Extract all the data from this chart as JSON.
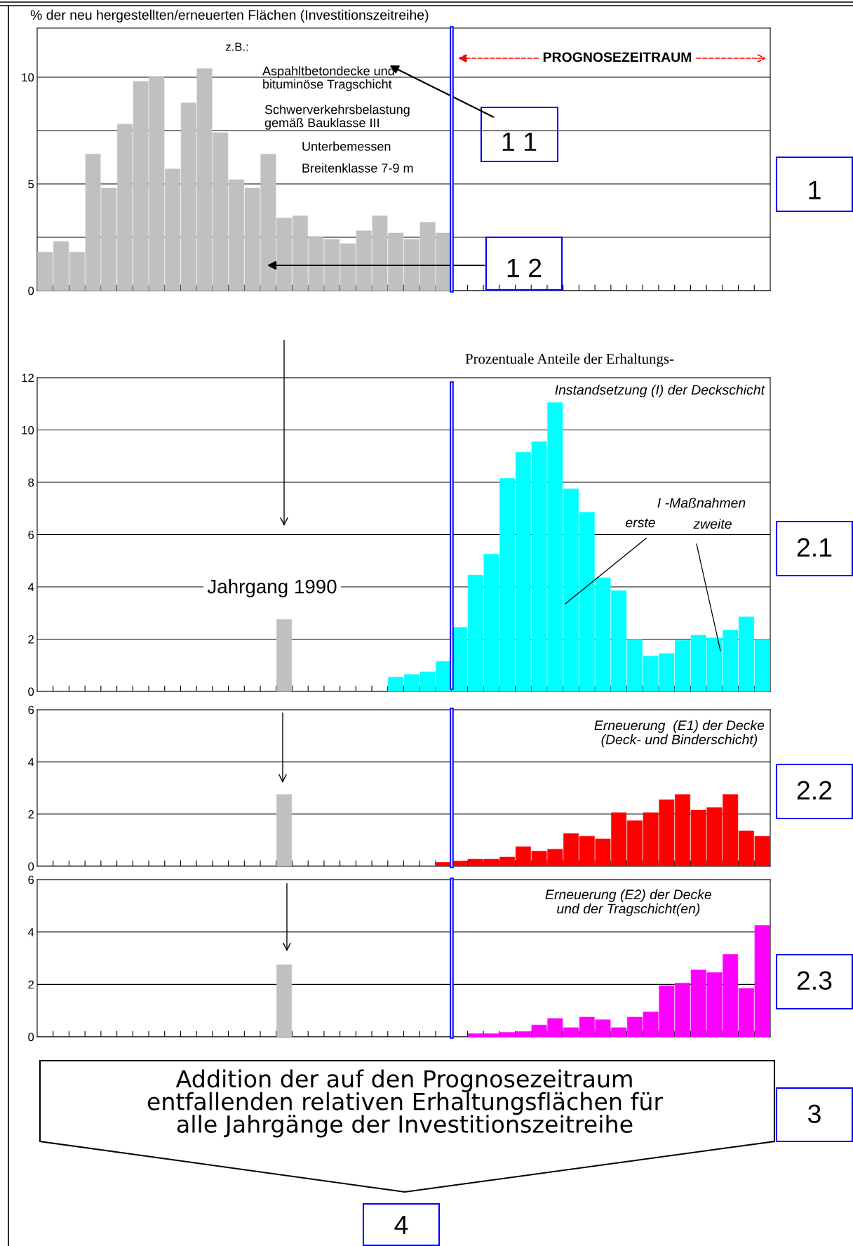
{
  "chart_data": [
    {
      "type": "bar",
      "ylabel": "% der neu hergestellten/erneuerten Flächen (Investitionszeitreihe)",
      "categories": [
        null,
        null,
        null,
        null,
        null,
        null,
        null,
        null,
        null,
        null,
        null,
        null,
        null,
        null,
        null,
        null,
        null,
        null,
        null,
        null,
        null,
        null,
        null,
        null,
        null,
        null,
        null,
        null,
        null,
        null,
        null,
        null,
        null,
        null,
        null,
        null,
        null,
        null,
        null,
        null,
        null,
        null,
        null,
        null,
        null,
        null
      ],
      "series": [
        {
          "color": "#c0c0c0",
          "values": [
            1.8,
            2.3,
            1.8,
            6.4,
            4.8,
            7.8,
            9.8,
            10.0,
            5.7,
            8.8,
            10.4,
            7.4,
            5.2,
            4.8,
            6.4,
            3.4,
            3.5,
            2.5,
            2.4,
            2.2,
            2.8,
            3.5,
            2.7,
            2.4,
            3.2,
            2.7,
            null,
            null,
            null,
            null,
            null,
            null,
            null,
            null,
            null,
            null,
            null,
            null,
            null,
            null,
            null,
            null,
            null,
            null,
            null,
            null
          ]
        }
      ],
      "ylim": [
        0,
        12.3
      ],
      "yticks": [
        0,
        {
          "value": 2.5,
          "label": null
        },
        5,
        {
          "value": 7.5,
          "label": null
        },
        10
      ],
      "grid": "y",
      "tick_labels": "y",
      "annotations": [
        "z.B.:",
        "Aspahltbetondecke und\nbituminöse Tragschicht",
        "Schwerverkehrsbelastung\ngemäß Bauklasse III",
        "Unterbemessen",
        "Breitenklasse 7-9 m",
        "PROGNOSEZEITRAUM",
        "1 1",
        "1 2",
        "1"
      ]
    },
    {
      "type": "bar",
      "categories": [
        null,
        null,
        null,
        null,
        null,
        null,
        null,
        null,
        null,
        null,
        null,
        null,
        null,
        null,
        null,
        null,
        null,
        null,
        null,
        null,
        null,
        null,
        null,
        null,
        null,
        null,
        null,
        null,
        null,
        null,
        null,
        null,
        null,
        null,
        null,
        null,
        null,
        null,
        null,
        null,
        null,
        null,
        null,
        null,
        null,
        null
      ],
      "series": [
        {
          "color": "#c0c0c0",
          "values": [
            null,
            null,
            null,
            null,
            null,
            null,
            null,
            null,
            null,
            null,
            null,
            null,
            null,
            null,
            null,
            2.75,
            null,
            null,
            null,
            null,
            null,
            null,
            null,
            null,
            null,
            null,
            null,
            null,
            null,
            null,
            null,
            null,
            null,
            null,
            null,
            null,
            null,
            null,
            null,
            null,
            null,
            null,
            null,
            null,
            null,
            null
          ]
        },
        {
          "color": "#00ffff",
          "values": [
            null,
            null,
            null,
            null,
            null,
            null,
            null,
            null,
            null,
            null,
            null,
            null,
            null,
            null,
            null,
            null,
            null,
            null,
            null,
            null,
            null,
            null,
            0.55,
            0.65,
            0.75,
            1.15,
            2.45,
            4.45,
            5.25,
            8.15,
            9.15,
            9.55,
            11.05,
            7.75,
            6.85,
            4.35,
            3.85,
            2.0,
            1.35,
            1.45,
            1.95,
            2.15,
            2.05,
            2.35,
            2.85,
            2.0
          ]
        }
      ],
      "ylim": [
        0,
        12
      ],
      "yticks": [
        0,
        2,
        4,
        6,
        8,
        10,
        12
      ],
      "grid": "y",
      "tick_labels": "y",
      "annotations": [
        "Prozentuale Anteile der Erhaltungs-",
        "Instandsetzung (I) der Deckschicht",
        "I -Maßnahmen",
        "erste",
        "zweite",
        "Jahrgang 1990",
        "2.1"
      ]
    },
    {
      "type": "bar",
      "categories": [
        null,
        null,
        null,
        null,
        null,
        null,
        null,
        null,
        null,
        null,
        null,
        null,
        null,
        null,
        null,
        null,
        null,
        null,
        null,
        null,
        null,
        null,
        null,
        null,
        null,
        null,
        null,
        null,
        null,
        null,
        null,
        null,
        null,
        null,
        null,
        null,
        null,
        null,
        null,
        null,
        null,
        null,
        null,
        null,
        null,
        null
      ],
      "series": [
        {
          "color": "#c0c0c0",
          "values": [
            null,
            null,
            null,
            null,
            null,
            null,
            null,
            null,
            null,
            null,
            null,
            null,
            null,
            null,
            null,
            2.75,
            null,
            null,
            null,
            null,
            null,
            null,
            null,
            null,
            null,
            null,
            null,
            null,
            null,
            null,
            null,
            null,
            null,
            null,
            null,
            null,
            null,
            null,
            null,
            null,
            null,
            null,
            null,
            null,
            null,
            null
          ]
        },
        {
          "color": "#ff0000",
          "values": [
            null,
            null,
            null,
            null,
            null,
            null,
            null,
            null,
            null,
            null,
            null,
            null,
            null,
            null,
            null,
            null,
            null,
            null,
            null,
            null,
            null,
            null,
            null,
            null,
            null,
            0.15,
            0.2,
            0.27,
            0.27,
            0.35,
            0.75,
            0.58,
            0.65,
            1.25,
            1.15,
            1.05,
            2.05,
            1.75,
            2.05,
            2.55,
            2.75,
            2.15,
            2.25,
            2.75,
            1.35,
            1.15
          ]
        }
      ],
      "ylim": [
        0,
        6
      ],
      "yticks": [
        0,
        2,
        4,
        6
      ],
      "grid": "y",
      "tick_labels": "y",
      "annotations": [
        "Erneuerung  (E1) der Decke\n(Deck- und Binderschicht)",
        "2.2"
      ]
    },
    {
      "type": "bar",
      "categories": [
        null,
        null,
        null,
        null,
        null,
        null,
        null,
        null,
        null,
        null,
        null,
        null,
        null,
        null,
        null,
        null,
        null,
        null,
        null,
        null,
        null,
        null,
        null,
        null,
        null,
        null,
        null,
        null,
        null,
        null,
        null,
        null,
        null,
        null,
        null,
        null,
        null,
        null,
        null,
        null,
        null,
        null,
        null,
        null,
        null,
        null
      ],
      "series": [
        {
          "color": "#c0c0c0",
          "values": [
            null,
            null,
            null,
            null,
            null,
            null,
            null,
            null,
            null,
            null,
            null,
            null,
            null,
            null,
            null,
            2.75,
            null,
            null,
            null,
            null,
            null,
            null,
            null,
            null,
            null,
            null,
            null,
            null,
            null,
            null,
            null,
            null,
            null,
            null,
            null,
            null,
            null,
            null,
            null,
            null,
            null,
            null,
            null,
            null,
            null,
            null
          ]
        },
        {
          "color": "#ff00ff",
          "values": [
            null,
            null,
            null,
            null,
            null,
            null,
            null,
            null,
            null,
            null,
            null,
            null,
            null,
            null,
            null,
            null,
            null,
            null,
            null,
            null,
            null,
            null,
            null,
            null,
            null,
            null,
            null,
            0.12,
            0.12,
            0.17,
            0.2,
            0.45,
            0.7,
            0.35,
            0.75,
            0.65,
            0.35,
            0.75,
            0.95,
            1.95,
            2.05,
            2.55,
            2.45,
            3.15,
            1.85,
            4.25
          ]
        }
      ],
      "ylim": [
        0,
        6
      ],
      "yticks": [
        0,
        2,
        4,
        6
      ],
      "grid": "y",
      "tick_labels": "y",
      "annotations": [
        "Erneuerung (E2) der Decke\nund der Tragschicht(en)",
        "2.3"
      ]
    },
    {
      "type": "other",
      "annotations": [
        "Addition der auf den Prognosezeitraum\nentfallenden relativen Erhaltungsflächen für\nalle Jahrgänge der Investitionszeitreihe",
        "3",
        "4"
      ]
    }
  ]
}
